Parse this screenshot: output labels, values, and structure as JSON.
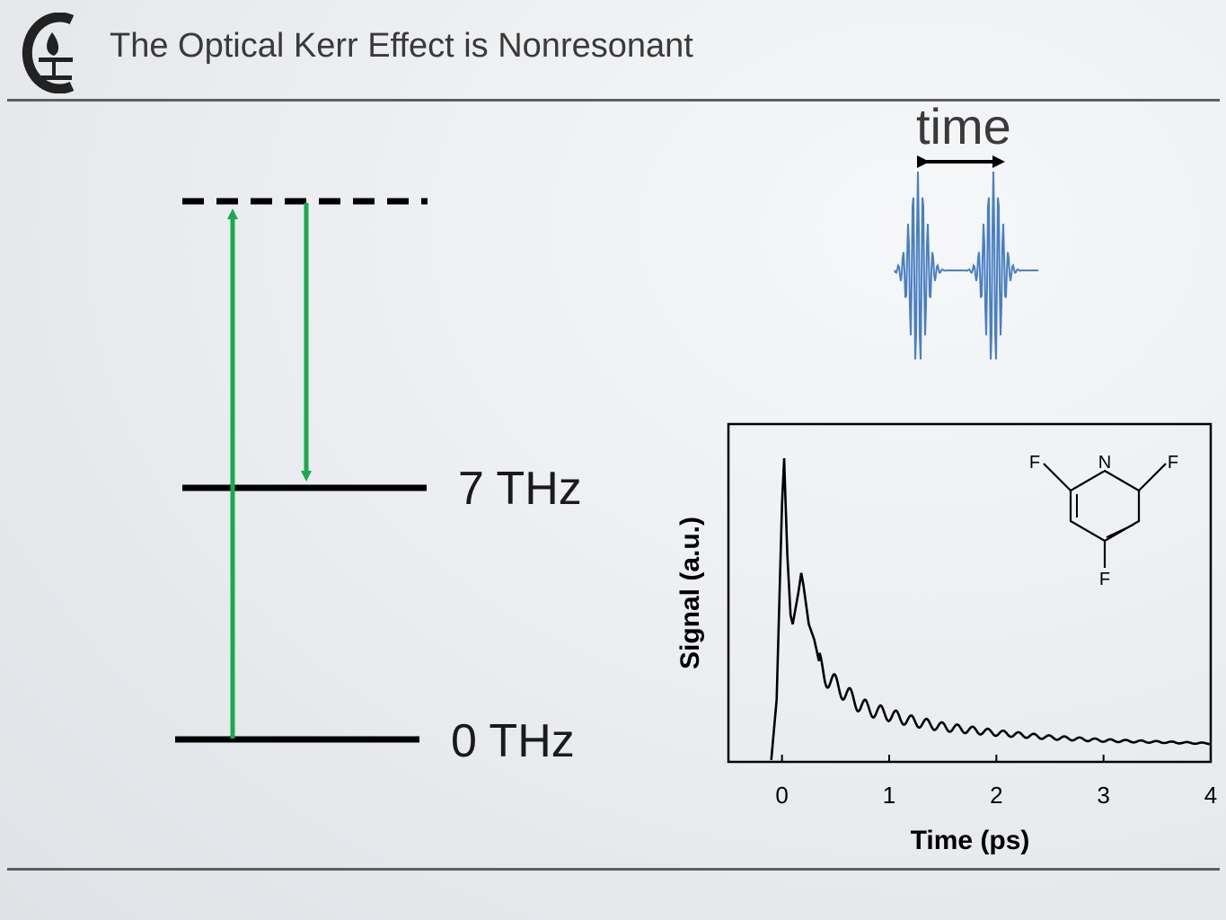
{
  "slide": {
    "title": "The Optical Kerr Effect is Nonresonant",
    "logo_icon": "institution-flame-logo"
  },
  "energy_diagram": {
    "levels": [
      {
        "label": "7 THz"
      },
      {
        "label": "0 THz"
      }
    ],
    "virtual_level_style": "dashed",
    "arrow_color": "#1aaa4e",
    "level_color": "#000000"
  },
  "pulse_inset": {
    "label": "time",
    "pulse_color": "#4a7fc1"
  },
  "chart_data": {
    "type": "line",
    "xlabel": "Time (ps)",
    "ylabel": "Signal (a.u.)",
    "xlim": [
      -0.5,
      4
    ],
    "x_ticks": [
      "0",
      "1",
      "2",
      "3",
      "4"
    ],
    "y_ticks_shown": false,
    "molecule_atoms": [
      "F",
      "N",
      "F",
      "F"
    ],
    "series": [
      {
        "x": [
          -0.3,
          -0.1,
          -0.05,
          0.0,
          0.02,
          0.05,
          0.08,
          0.1,
          0.15,
          0.18,
          0.2,
          0.25,
          0.3,
          0.35,
          0.4,
          0.5,
          0.6,
          0.7,
          0.8,
          1.0,
          1.2,
          1.5,
          2.0,
          2.5,
          3.0,
          3.5,
          4.0
        ],
        "y": [
          0.0,
          0.0,
          0.2,
          0.85,
          1.0,
          0.68,
          0.48,
          0.45,
          0.55,
          0.62,
          0.58,
          0.45,
          0.4,
          0.32,
          0.28,
          0.25,
          0.22,
          0.19,
          0.17,
          0.15,
          0.13,
          0.11,
          0.09,
          0.075,
          0.065,
          0.06,
          0.055
        ]
      }
    ]
  }
}
